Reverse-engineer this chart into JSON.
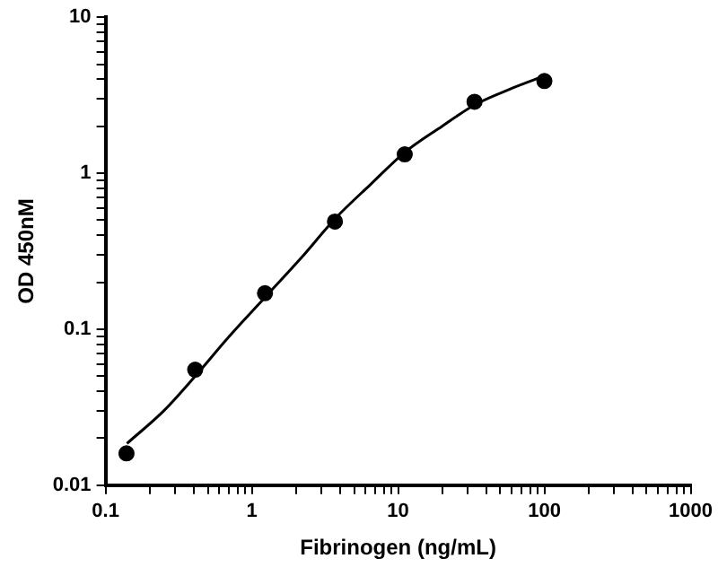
{
  "chart_data": {
    "type": "scatter",
    "xlabel": "Fibrinogen (ng/mL)",
    "ylabel": "OD 450nM",
    "log": "xy",
    "grid": false,
    "legend": false,
    "marker": "circle",
    "xlim": [
      0.1,
      1000
    ],
    "ylim": [
      0.01,
      10
    ],
    "xticks": [
      0.1,
      {
        "value": 0.2,
        "label": null
      },
      {
        "value": 0.3,
        "label": null
      },
      {
        "value": 0.4,
        "label": null
      },
      {
        "value": 0.5,
        "label": null
      },
      {
        "value": 0.6,
        "label": null
      },
      {
        "value": 0.7,
        "label": null
      },
      {
        "value": 0.8,
        "label": null
      },
      {
        "value": 0.9,
        "label": null
      },
      1,
      {
        "value": 2,
        "label": null
      },
      {
        "value": 3,
        "label": null
      },
      {
        "value": 4,
        "label": null
      },
      {
        "value": 5,
        "label": null
      },
      {
        "value": 6,
        "label": null
      },
      {
        "value": 7,
        "label": null
      },
      {
        "value": 8,
        "label": null
      },
      {
        "value": 9,
        "label": null
      },
      10,
      {
        "value": 20,
        "label": null
      },
      {
        "value": 30,
        "label": null
      },
      {
        "value": 40,
        "label": null
      },
      {
        "value": 50,
        "label": null
      },
      {
        "value": 60,
        "label": null
      },
      {
        "value": 70,
        "label": null
      },
      {
        "value": 80,
        "label": null
      },
      {
        "value": 90,
        "label": null
      },
      100,
      {
        "value": 200,
        "label": null
      },
      {
        "value": 300,
        "label": null
      },
      {
        "value": 400,
        "label": null
      },
      {
        "value": 500,
        "label": null
      },
      {
        "value": 600,
        "label": null
      },
      {
        "value": 700,
        "label": null
      },
      {
        "value": 800,
        "label": null
      },
      {
        "value": 900,
        "label": null
      },
      1000
    ],
    "yticks": [
      0.01,
      {
        "value": 0.02,
        "label": null
      },
      {
        "value": 0.03,
        "label": null
      },
      {
        "value": 0.04,
        "label": null
      },
      {
        "value": 0.05,
        "label": null
      },
      {
        "value": 0.06,
        "label": null
      },
      {
        "value": 0.07,
        "label": null
      },
      {
        "value": 0.08,
        "label": null
      },
      {
        "value": 0.09,
        "label": null
      },
      0.1,
      {
        "value": 0.2,
        "label": null
      },
      {
        "value": 0.3,
        "label": null
      },
      {
        "value": 0.4,
        "label": null
      },
      {
        "value": 0.5,
        "label": null
      },
      {
        "value": 0.6,
        "label": null
      },
      {
        "value": 0.7,
        "label": null
      },
      {
        "value": 0.8,
        "label": null
      },
      {
        "value": 0.9,
        "label": null
      },
      1,
      {
        "value": 2,
        "label": null
      },
      {
        "value": 3,
        "label": null
      },
      {
        "value": 4,
        "label": null
      },
      {
        "value": 5,
        "label": null
      },
      {
        "value": 6,
        "label": null
      },
      {
        "value": 7,
        "label": null
      },
      {
        "value": 8,
        "label": null
      },
      {
        "value": 9,
        "label": null
      },
      10
    ],
    "series": [
      {
        "type": "scatter",
        "color": "#000000",
        "x": [
          0.139,
          0.41,
          1.23,
          3.7,
          11.1,
          33.3,
          100
        ],
        "values": [
          0.016,
          0.055,
          0.17,
          0.49,
          1.32,
          2.87,
          3.9
        ]
      },
      {
        "type": "line",
        "color": "#000000",
        "marker": "none",
        "x": [
          0.14,
          0.25,
          0.41,
          0.7,
          1.23,
          2.2,
          3.7,
          6.5,
          11.1,
          20,
          33.3,
          60,
          100
        ],
        "values": [
          0.0185,
          0.03,
          0.05,
          0.09,
          0.16,
          0.29,
          0.51,
          0.85,
          1.36,
          2.0,
          2.74,
          3.5,
          4.2
        ]
      }
    ]
  }
}
